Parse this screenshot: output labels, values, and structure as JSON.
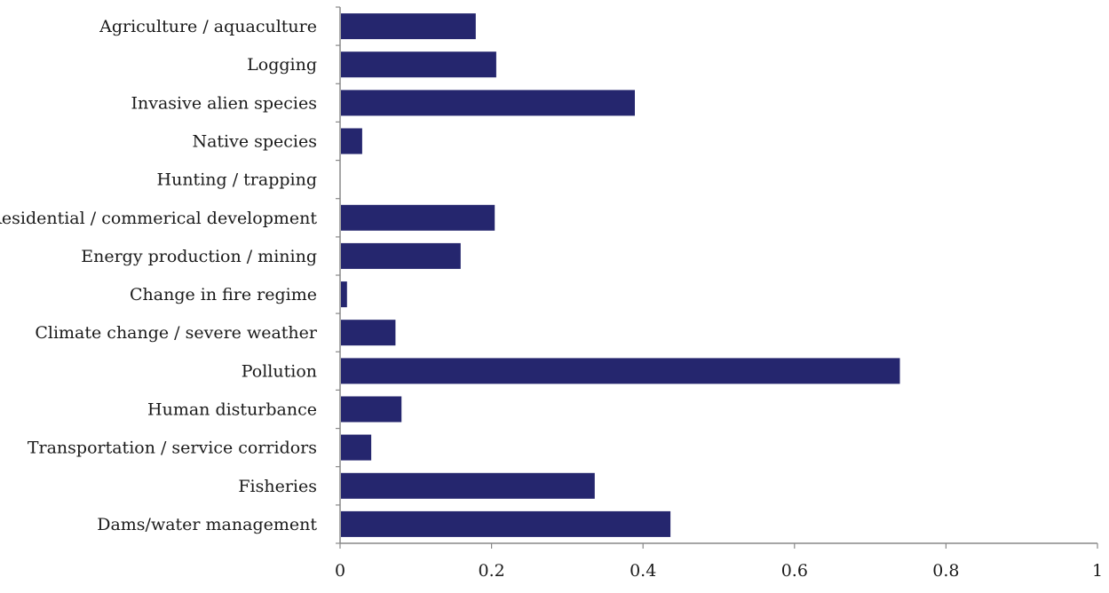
{
  "chart_data": {
    "type": "bar",
    "orientation": "horizontal",
    "title": "",
    "xlabel": "",
    "ylabel": "",
    "categories": [
      "Agriculture / aquaculture",
      "Logging",
      "Invasive alien species",
      "Native species",
      "Hunting / trapping",
      "Residential / commerical development",
      "Energy production / mining",
      "Change in fire regime",
      "Climate change / severe weather",
      "Pollution",
      "Human disturbance",
      "Transportation  / service corridors",
      "Fisheries",
      "Dams/water management"
    ],
    "values": [
      0.178,
      0.205,
      0.388,
      0.028,
      0.0,
      0.203,
      0.158,
      0.008,
      0.072,
      0.738,
      0.08,
      0.04,
      0.335,
      0.435
    ],
    "xlim": [
      0,
      1
    ],
    "xticks": [
      "0",
      "0.2",
      "0.4",
      "0.6",
      "0.8",
      "1"
    ],
    "bar_color": "#25266e",
    "grid": false,
    "legend": "none"
  }
}
